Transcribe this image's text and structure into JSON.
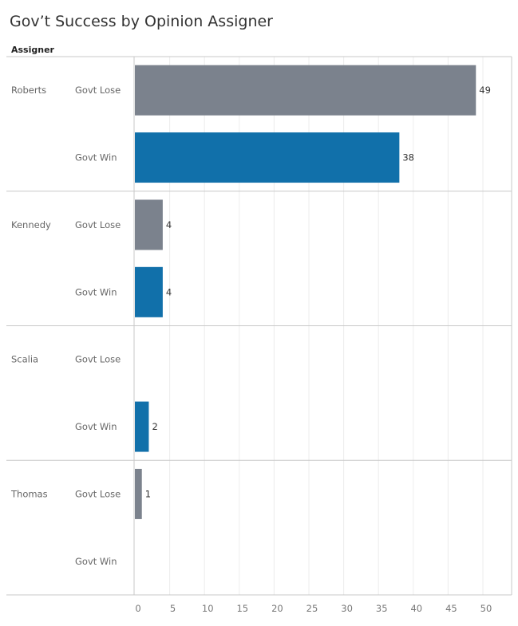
{
  "chart_data": {
    "type": "bar",
    "orientation": "horizontal",
    "title": "Gov’t Success by Opinion Assigner",
    "row_header": "Assigner",
    "groups": [
      "Roberts",
      "Kennedy",
      "Scalia",
      "Thomas"
    ],
    "categories": [
      "Govt Lose",
      "Govt Win"
    ],
    "values": [
      [
        49,
        38
      ],
      [
        4,
        4
      ],
      [
        null,
        2
      ],
      [
        1,
        null
      ]
    ],
    "xlim": [
      0,
      50
    ],
    "xticks": [
      0,
      5,
      10,
      15,
      20,
      25,
      30,
      35,
      40,
      45,
      50
    ],
    "grid": true,
    "colors": {
      "Govt Lose": "#7b828d",
      "Govt Win": "#1170aa"
    }
  }
}
